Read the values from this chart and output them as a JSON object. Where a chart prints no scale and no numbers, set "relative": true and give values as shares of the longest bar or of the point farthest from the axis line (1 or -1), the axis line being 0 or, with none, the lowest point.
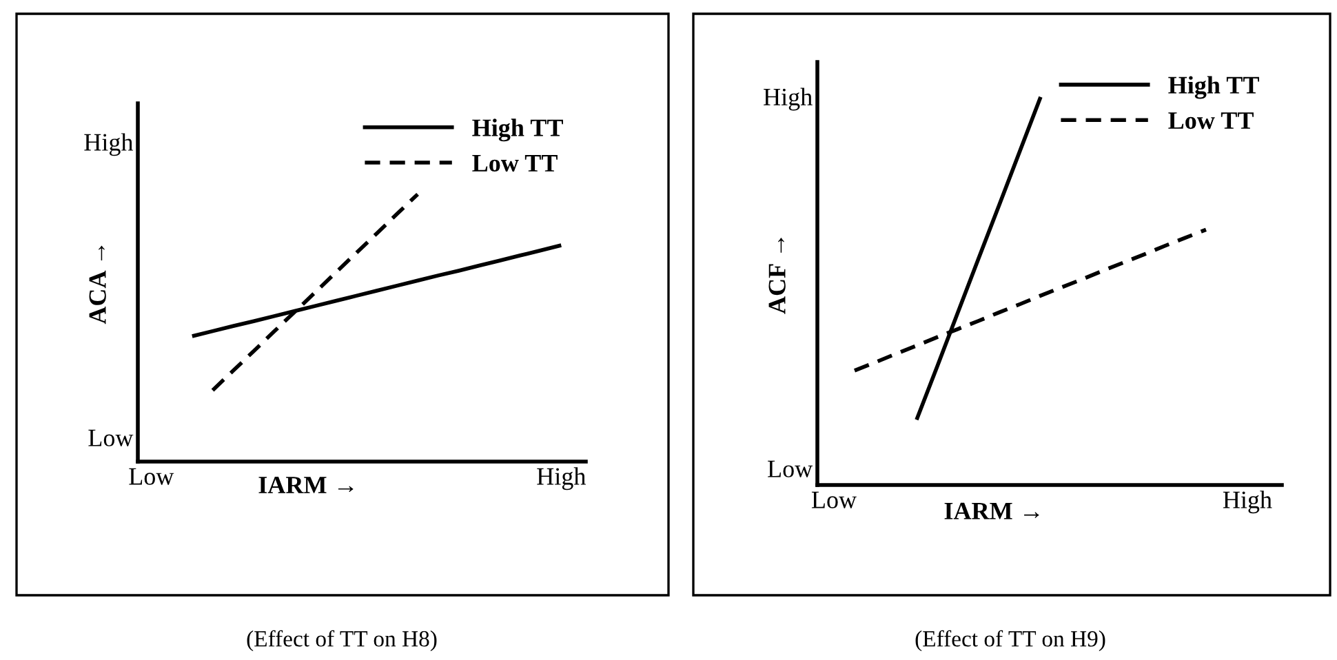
{
  "chart_data": [
    {
      "type": "line",
      "relative": true,
      "xlabel": "IARM →",
      "ylabel": "ACA →",
      "categories": [
        "Low",
        null,
        null,
        null,
        null,
        null,
        null,
        null,
        null,
        null,
        null,
        null,
        null,
        null,
        null,
        null,
        null,
        null,
        null,
        null,
        "High"
      ],
      "series": [
        {
          "name": "High TT",
          "color": "#000000",
          "line_style": "solid",
          "values": [
            null,
            null,
            0.469,
            0.488,
            0.507,
            0.525,
            0.544,
            0.563,
            0.582,
            0.601,
            0.62,
            0.639,
            0.658,
            0.677,
            0.696,
            0.714,
            0.733,
            0.752,
            0.771,
            0.79,
            0.809
          ]
        },
        {
          "name": "Low TT",
          "color": "#000000",
          "line_style": "dashed",
          "values": [
            null,
            null,
            null,
            0.267,
            0.34,
            0.413,
            0.487,
            0.56,
            0.633,
            0.707,
            0.78,
            0.853,
            0.927,
            1.0,
            null,
            null,
            null,
            null,
            null,
            null,
            null
          ]
        }
      ],
      "legend": "top right",
      "annotations": [
        "Low",
        "High",
        "(Effect of TT on H8)"
      ]
    },
    {
      "type": "line",
      "relative": true,
      "xlabel": "IARM →",
      "ylabel": "ACF →",
      "categories": [
        "Low",
        null,
        null,
        null,
        null,
        null,
        null,
        null,
        null,
        null,
        null,
        null,
        null,
        null,
        null,
        null,
        null,
        null,
        null,
        null,
        "High"
      ],
      "series": [
        {
          "name": "High TT",
          "color": "#000000",
          "line_style": "solid",
          "values": [
            null,
            null,
            null,
            null,
            0.168,
            0.306,
            0.445,
            0.584,
            0.722,
            0.861,
            1.0,
            null,
            null,
            null,
            null,
            null,
            null,
            null,
            null,
            null,
            null
          ]
        },
        {
          "name": "Low TT",
          "color": "#000000",
          "line_style": "dashed",
          "values": [
            null,
            0.295,
            0.316,
            0.338,
            0.359,
            0.381,
            0.402,
            0.423,
            0.445,
            0.466,
            0.488,
            0.509,
            0.53,
            0.552,
            0.573,
            0.594,
            0.616,
            0.637,
            0.658,
            null,
            null
          ]
        }
      ],
      "legend": "top right",
      "annotations": [
        "Low",
        "High",
        "(Effect of TT on H9)"
      ]
    }
  ]
}
